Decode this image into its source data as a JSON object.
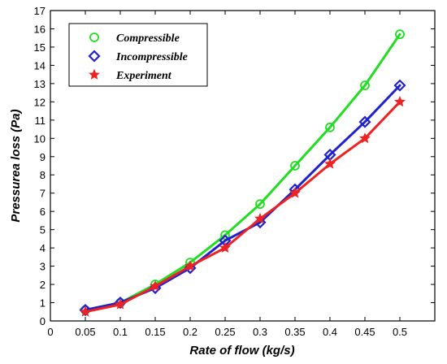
{
  "chart_data": {
    "type": "line",
    "title": "",
    "xlabel": "Rate of flow (kg/s)",
    "ylabel": "Pressurea loss (Pa)",
    "xlim": [
      0,
      0.55
    ],
    "ylim": [
      0,
      17
    ],
    "x_ticks": [
      "0",
      "0.05",
      "0.1",
      "0.15",
      "0.2",
      "0.25",
      "0.3",
      "0.35",
      "0.4",
      "0.45",
      "0.5"
    ],
    "y_ticks": [
      "0",
      "1",
      "2",
      "3",
      "4",
      "5",
      "6",
      "7",
      "8",
      "9",
      "10",
      "11",
      "12",
      "13",
      "14",
      "15",
      "16",
      "17"
    ],
    "grid": false,
    "legend_position": "top-left",
    "x": [
      0.05,
      0.1,
      0.15,
      0.2,
      0.25,
      0.3,
      0.35,
      0.4,
      0.45,
      0.5
    ],
    "series": [
      {
        "name": "Compressible",
        "color": "#22dd22",
        "marker": "circle",
        "values": [
          0.6,
          1.0,
          2.0,
          3.2,
          4.7,
          6.4,
          8.5,
          10.6,
          12.9,
          15.7
        ]
      },
      {
        "name": "Incompressible",
        "color": "#2222cc",
        "marker": "diamond",
        "values": [
          0.6,
          1.0,
          1.8,
          2.9,
          4.4,
          5.4,
          7.2,
          9.1,
          10.9,
          12.9
        ]
      },
      {
        "name": "Experiment",
        "color": "#ee2222",
        "marker": "star",
        "values": [
          0.5,
          0.9,
          1.9,
          3.0,
          4.0,
          5.6,
          7.0,
          8.6,
          10.0,
          12.0
        ]
      }
    ]
  }
}
